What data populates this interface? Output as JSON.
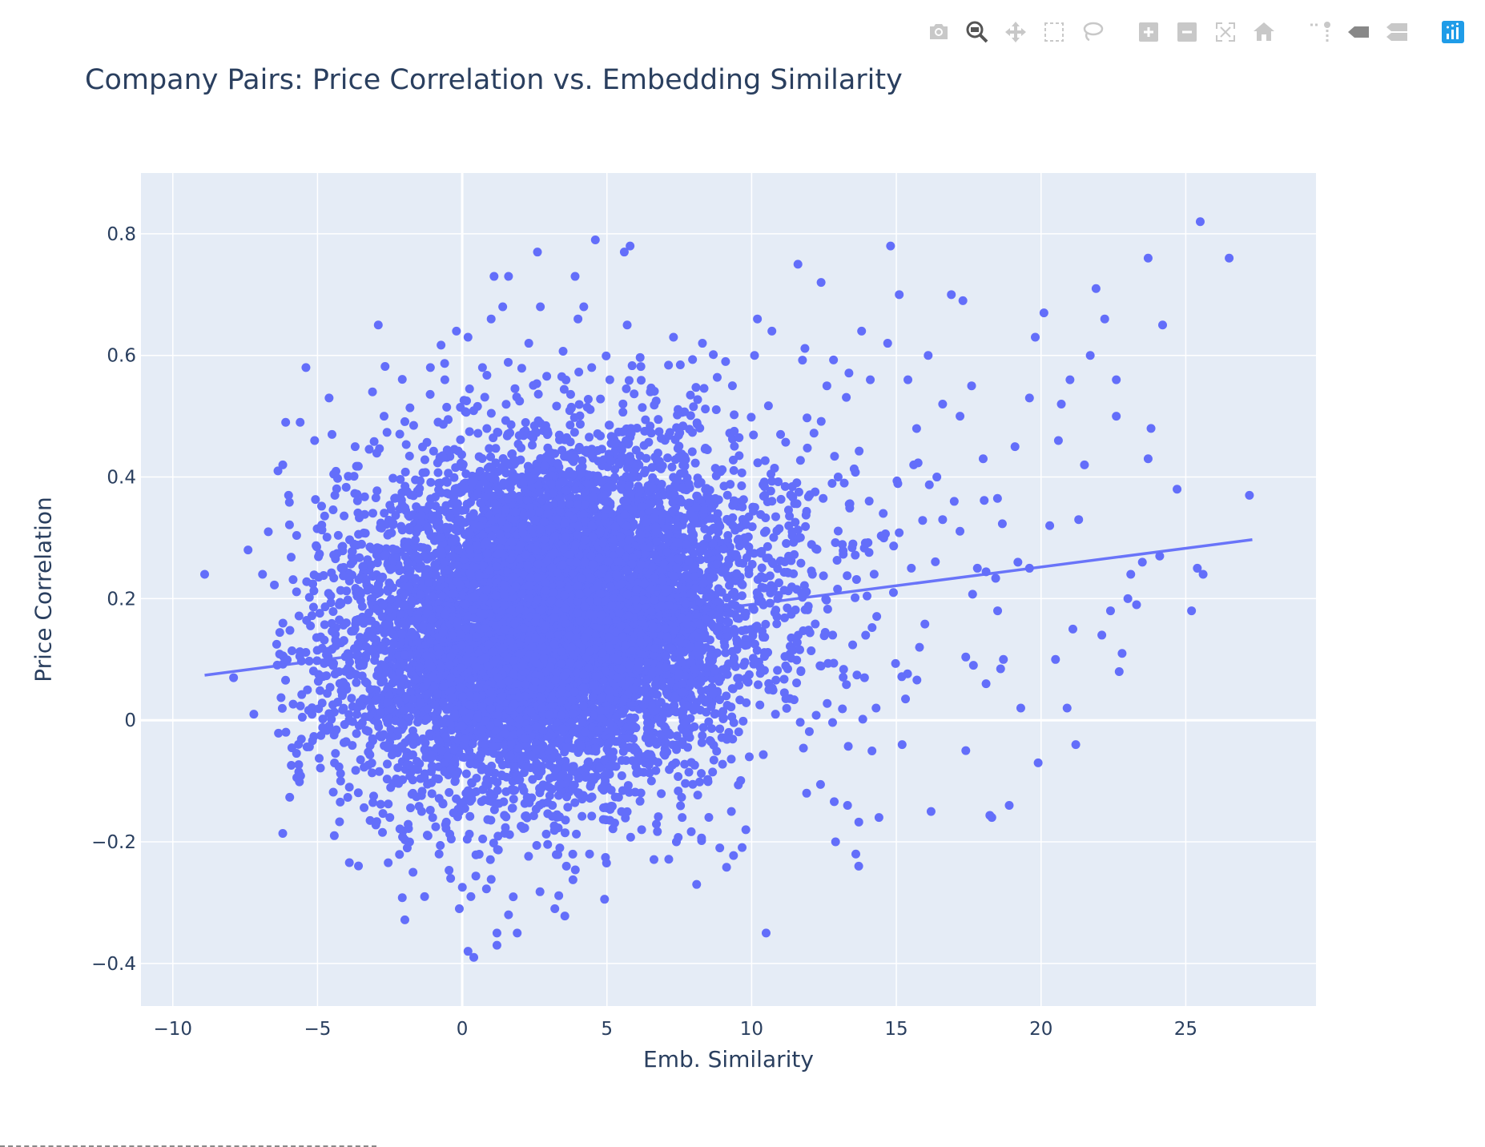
{
  "modebar": {
    "buttons": [
      {
        "name": "camera-icon",
        "group": 0
      },
      {
        "name": "zoom-icon",
        "group": 0,
        "active": true
      },
      {
        "name": "pan-icon",
        "group": 0
      },
      {
        "name": "box-select-icon",
        "group": 0
      },
      {
        "name": "lasso-select-icon",
        "group": 0
      },
      {
        "name": "zoom-in-icon",
        "group": 1
      },
      {
        "name": "zoom-out-icon",
        "group": 1
      },
      {
        "name": "autoscale-icon",
        "group": 1
      },
      {
        "name": "reset-axes-icon",
        "group": 1
      },
      {
        "name": "spike-lines-icon",
        "group": 2
      },
      {
        "name": "hover-closest-icon",
        "group": 2
      },
      {
        "name": "hover-compare-icon",
        "group": 2
      },
      {
        "name": "plotly-logo-icon",
        "group": 3
      }
    ]
  },
  "chart_data": {
    "type": "scatter",
    "title": "Company Pairs: Price Correlation vs. Embedding Similarity",
    "xlabel": "Emb. Similarity",
    "ylabel": "Price Correlation",
    "xlim": [
      -11.1,
      29.5
    ],
    "ylim": [
      -0.47,
      0.9
    ],
    "xticks": [
      -10,
      -5,
      0,
      5,
      10,
      15,
      20,
      25
    ],
    "yticks": [
      -0.4,
      -0.2,
      0,
      0.2,
      0.4,
      0.6,
      0.8
    ],
    "xtick_labels": [
      "−10",
      "−5",
      "0",
      "5",
      "10",
      "15",
      "20",
      "25"
    ],
    "ytick_labels": [
      "−0.4",
      "−0.2",
      "0",
      "0.2",
      "0.4",
      "0.6",
      "0.8"
    ],
    "grid": true,
    "colors": {
      "marker": "#636efa",
      "trendline": "#636efa",
      "plot_bg": "#e5ecf6",
      "grid": "#ffffff"
    },
    "trendline": {
      "x": [
        -8.9,
        27.3
      ],
      "y": [
        0.074,
        0.297
      ]
    },
    "dense_core": {
      "x_center": 3.0,
      "x_sd": 3.2,
      "y_center": 0.17,
      "y_sd": 0.14
    },
    "series": [
      {
        "points": [
          [
            -8.9,
            0.24
          ],
          [
            -7.9,
            0.07
          ],
          [
            -7.4,
            0.28
          ],
          [
            -7.2,
            0.01
          ],
          [
            -6.9,
            0.24
          ],
          [
            -6.7,
            0.31
          ],
          [
            -6.2,
            0.42
          ],
          [
            -6.1,
            0.49
          ],
          [
            -6.0,
            0.37
          ],
          [
            -5.6,
            0.49
          ],
          [
            -5.4,
            0.58
          ],
          [
            -5.1,
            0.46
          ],
          [
            -4.6,
            0.53
          ],
          [
            -4.5,
            0.47
          ],
          [
            -4.4,
            0.37
          ],
          [
            -4.2,
            -0.1
          ],
          [
            -3.9,
            -0.11
          ],
          [
            -3.7,
            0.45
          ],
          [
            -3.1,
            0.54
          ],
          [
            -2.9,
            0.65
          ],
          [
            -2.7,
            0.5
          ],
          [
            -2.5,
            -0.16
          ],
          [
            -1.9,
            -0.21
          ],
          [
            -1.7,
            -0.25
          ],
          [
            -1.3,
            -0.29
          ],
          [
            -1.1,
            0.58
          ],
          [
            -0.8,
            -0.22
          ],
          [
            -0.6,
            0.56
          ],
          [
            -0.4,
            -0.26
          ],
          [
            -0.2,
            0.64
          ],
          [
            -0.1,
            -0.31
          ],
          [
            0.2,
            0.63
          ],
          [
            0.3,
            -0.29
          ],
          [
            0.2,
            -0.38
          ],
          [
            0.4,
            -0.39
          ],
          [
            0.7,
            0.58
          ],
          [
            1.0,
            0.66
          ],
          [
            1.1,
            0.73
          ],
          [
            1.2,
            -0.35
          ],
          [
            1.2,
            -0.37
          ],
          [
            1.4,
            0.68
          ],
          [
            1.6,
            -0.32
          ],
          [
            1.6,
            0.73
          ],
          [
            1.9,
            -0.35
          ],
          [
            2.3,
            0.62
          ],
          [
            2.6,
            0.77
          ],
          [
            2.7,
            0.68
          ],
          [
            3.2,
            -0.31
          ],
          [
            3.6,
            -0.24
          ],
          [
            3.9,
            0.73
          ],
          [
            4.0,
            0.66
          ],
          [
            4.2,
            0.68
          ],
          [
            4.6,
            0.79
          ],
          [
            4.4,
            -0.22
          ],
          [
            5.1,
            0.56
          ],
          [
            5.6,
            0.77
          ],
          [
            5.8,
            0.78
          ],
          [
            5.7,
            0.65
          ],
          [
            6.2,
            -0.18
          ],
          [
            6.5,
            0.54
          ],
          [
            7.3,
            0.63
          ],
          [
            7.4,
            -0.2
          ],
          [
            7.6,
            -0.16
          ],
          [
            8.1,
            -0.27
          ],
          [
            8.3,
            0.62
          ],
          [
            8.9,
            -0.21
          ],
          [
            9.1,
            0.59
          ],
          [
            9.3,
            -0.15
          ],
          [
            9.8,
            -0.18
          ],
          [
            10.1,
            0.6
          ],
          [
            10.2,
            0.66
          ],
          [
            10.5,
            -0.35
          ],
          [
            10.7,
            0.64
          ],
          [
            11.0,
            0.47
          ],
          [
            11.6,
            0.75
          ],
          [
            11.9,
            -0.12
          ],
          [
            12.4,
            0.72
          ],
          [
            12.6,
            0.55
          ],
          [
            12.9,
            -0.2
          ],
          [
            13.2,
            0.39
          ],
          [
            13.6,
            -0.22
          ],
          [
            13.7,
            -0.24
          ],
          [
            13.8,
            0.64
          ],
          [
            14.1,
            0.56
          ],
          [
            14.4,
            -0.16
          ],
          [
            14.7,
            0.62
          ],
          [
            14.8,
            0.78
          ],
          [
            15.1,
            0.7
          ],
          [
            15.4,
            0.56
          ],
          [
            15.6,
            0.42
          ],
          [
            16.1,
            0.6
          ],
          [
            16.6,
            0.52
          ],
          [
            16.9,
            0.7
          ],
          [
            17.2,
            0.5
          ],
          [
            17.3,
            0.69
          ],
          [
            17.6,
            0.55
          ],
          [
            18.0,
            0.43
          ],
          [
            18.3,
            -0.16
          ],
          [
            18.5,
            0.18
          ],
          [
            18.9,
            -0.14
          ],
          [
            19.1,
            0.45
          ],
          [
            19.2,
            0.26
          ],
          [
            19.6,
            0.53
          ],
          [
            19.8,
            0.63
          ],
          [
            19.9,
            -0.07
          ],
          [
            20.1,
            0.67
          ],
          [
            20.3,
            0.32
          ],
          [
            20.6,
            0.46
          ],
          [
            20.7,
            0.52
          ],
          [
            21.0,
            0.56
          ],
          [
            21.3,
            0.33
          ],
          [
            21.5,
            0.42
          ],
          [
            21.7,
            0.6
          ],
          [
            21.9,
            0.71
          ],
          [
            22.2,
            0.66
          ],
          [
            22.4,
            0.18
          ],
          [
            22.6,
            0.5
          ],
          [
            22.6,
            0.56
          ],
          [
            22.8,
            0.11
          ],
          [
            23.0,
            0.2
          ],
          [
            23.5,
            0.26
          ],
          [
            23.7,
            0.76
          ],
          [
            23.7,
            0.43
          ],
          [
            23.8,
            0.48
          ],
          [
            24.1,
            0.27
          ],
          [
            24.2,
            0.65
          ],
          [
            24.7,
            0.38
          ],
          [
            25.2,
            0.18
          ],
          [
            25.4,
            0.25
          ],
          [
            25.5,
            0.82
          ],
          [
            25.6,
            0.24
          ],
          [
            26.5,
            0.76
          ],
          [
            27.2,
            0.37
          ],
          [
            19.6,
            0.25
          ],
          [
            20.9,
            0.02
          ],
          [
            21.2,
            -0.04
          ],
          [
            22.1,
            0.14
          ],
          [
            23.3,
            0.19
          ],
          [
            16.2,
            -0.15
          ],
          [
            17.4,
            -0.05
          ],
          [
            18.1,
            0.06
          ],
          [
            15.2,
            -0.04
          ],
          [
            14.3,
            0.02
          ],
          [
            13.5,
            0.29
          ],
          [
            12.1,
            0.24
          ],
          [
            11.4,
            0.31
          ],
          [
            16.6,
            0.33
          ],
          [
            17.8,
            0.25
          ],
          [
            18.7,
            0.1
          ],
          [
            19.3,
            0.02
          ],
          [
            15.8,
            0.12
          ],
          [
            14.9,
            0.21
          ],
          [
            13.9,
            0.07
          ],
          [
            12.8,
            0.14
          ],
          [
            11.7,
            0.08
          ],
          [
            10.9,
            0.2
          ],
          [
            20.5,
            0.1
          ],
          [
            21.1,
            0.15
          ],
          [
            22.7,
            0.08
          ],
          [
            23.1,
            0.24
          ],
          [
            17.0,
            0.36
          ],
          [
            16.4,
            0.4
          ]
        ]
      }
    ]
  }
}
